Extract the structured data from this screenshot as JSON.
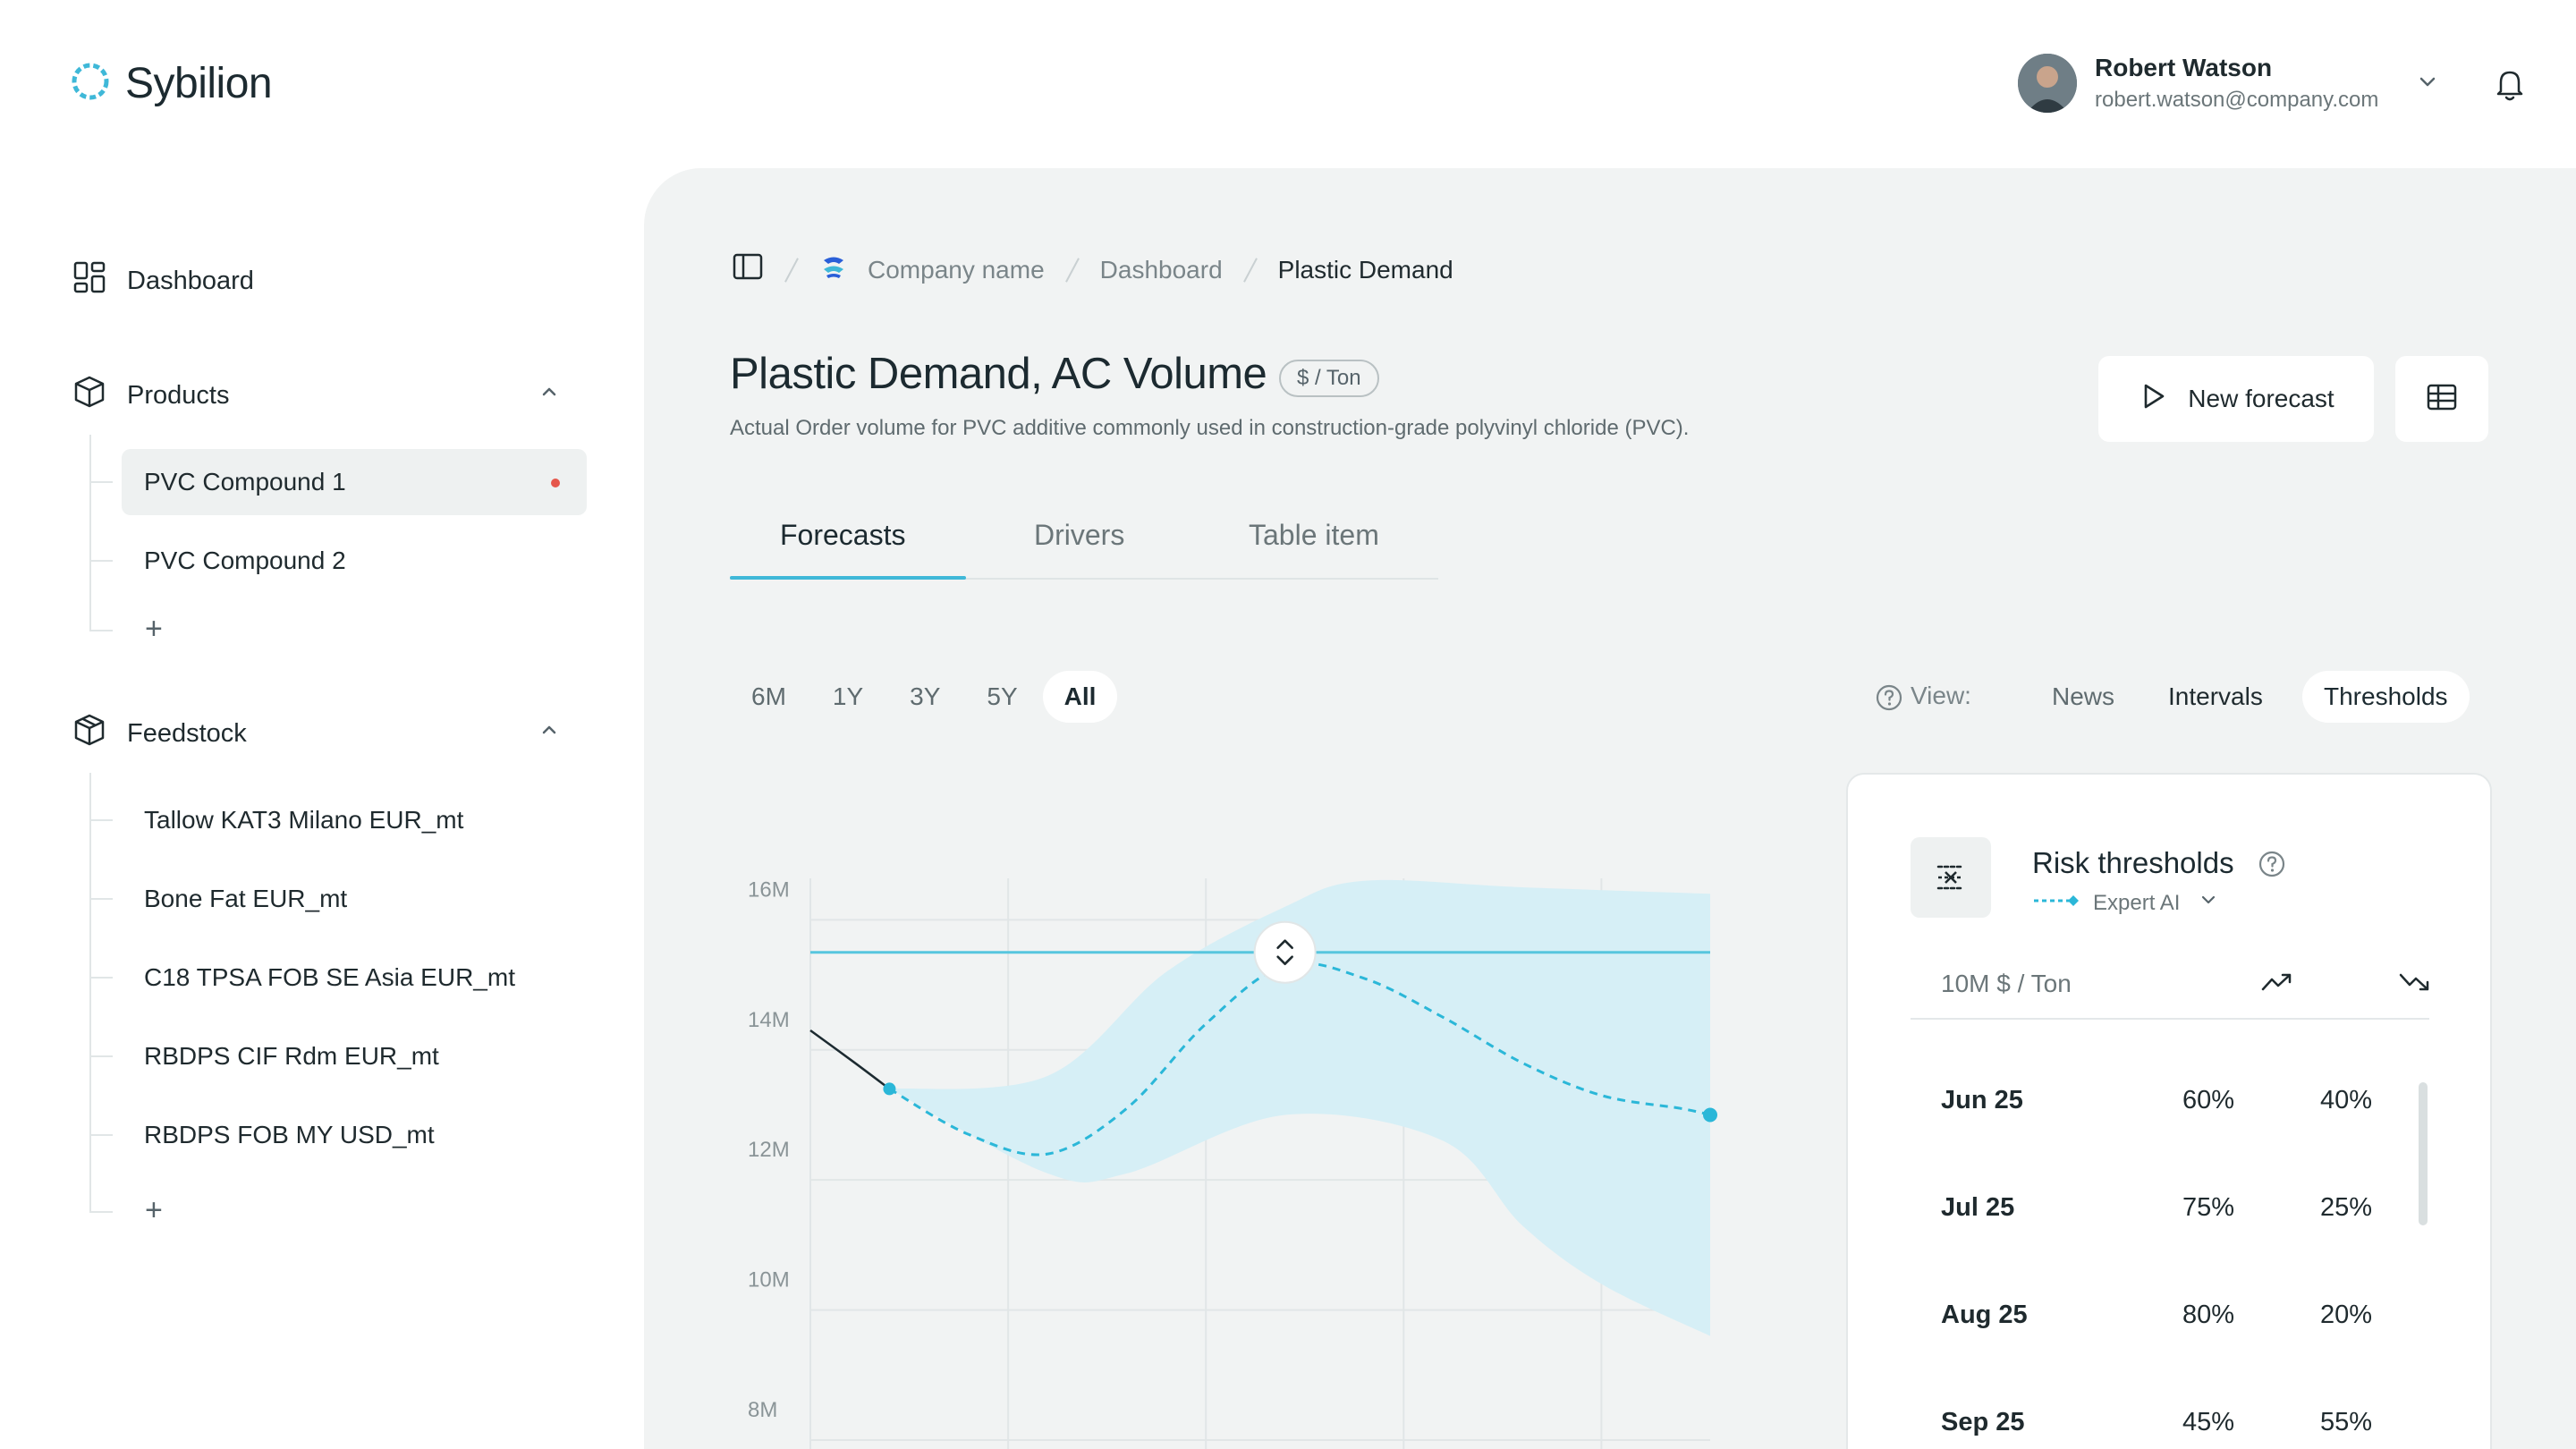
{
  "app": {
    "name": "Sybilion"
  },
  "user": {
    "name": "Robert Watson",
    "email": "robert.watson@company.com"
  },
  "sidebar": {
    "dashboard": "Dashboard",
    "products": {
      "label": "Products",
      "items": [
        {
          "label": "PVC Compound 1",
          "active": true
        },
        {
          "label": "PVC Compound 2",
          "active": false
        }
      ],
      "add": "+"
    },
    "feedstock": {
      "label": "Feedstock",
      "items": [
        {
          "label": "Tallow KAT3 Milano EUR_mt"
        },
        {
          "label": "Bone Fat EUR_mt"
        },
        {
          "label": "C18 TPSA FOB SE Asia EUR_mt"
        },
        {
          "label": "RBDPS CIF Rdm EUR_mt"
        },
        {
          "label": "RBDPS FOB MY USD_mt"
        }
      ],
      "add": "+"
    }
  },
  "breadcrumb": [
    "Company name",
    "Dashboard",
    "Plastic Demand"
  ],
  "page": {
    "title": "Plastic Demand, AC Volume",
    "unit": "$ / Ton",
    "subtitle": "Actual Order volume for PVC additive commonly used in construction-grade polyvinyl chloride (PVC).",
    "new_forecast": "New forecast"
  },
  "tabs": [
    "Forecasts",
    "Drivers",
    "Table item"
  ],
  "ranges": [
    "6M",
    "1Y",
    "3Y",
    "5Y",
    "All"
  ],
  "view": {
    "label": "View:",
    "options": [
      "News",
      "Intervals",
      "Thresholds"
    ],
    "active": "Thresholds"
  },
  "colors": {
    "accent": "#3fb8d8",
    "band": "#d6eff6",
    "alert": "#e5574b"
  },
  "chart_data": {
    "type": "line",
    "y_ticks": [
      "16M",
      "14M",
      "12M",
      "10M",
      "8M"
    ],
    "ylim": [
      8,
      16.5
    ],
    "threshold": 15.5,
    "history": [
      {
        "x": 0,
        "y": 14.3
      },
      {
        "x": 0.45,
        "y": 13.8
      },
      {
        "x": 0.8,
        "y": 13.4
      }
    ],
    "forecast": [
      {
        "x": 0.8,
        "y": 13.4
      },
      {
        "x": 1.6,
        "y": 12.7
      },
      {
        "x": 2.4,
        "y": 12.4
      },
      {
        "x": 3.2,
        "y": 13.1
      },
      {
        "x": 4.0,
        "y": 14.4
      },
      {
        "x": 4.8,
        "y": 15.3
      },
      {
        "x": 5.6,
        "y": 15.1
      },
      {
        "x": 6.4,
        "y": 14.5
      },
      {
        "x": 7.2,
        "y": 13.8
      },
      {
        "x": 8.0,
        "y": 13.3
      },
      {
        "x": 8.8,
        "y": 13.1
      },
      {
        "x": 9.1,
        "y": 13.0
      }
    ],
    "band_upper": [
      {
        "x": 0.8,
        "y": 13.4
      },
      {
        "x": 2.4,
        "y": 13.6
      },
      {
        "x": 3.6,
        "y": 15.2
      },
      {
        "x": 4.8,
        "y": 16.2
      },
      {
        "x": 5.6,
        "y": 16.6
      },
      {
        "x": 7.2,
        "y": 16.5
      },
      {
        "x": 9.1,
        "y": 16.4
      }
    ],
    "band_lower": [
      {
        "x": 0.8,
        "y": 13.4
      },
      {
        "x": 2.4,
        "y": 12.1
      },
      {
        "x": 3.2,
        "y": 12.1
      },
      {
        "x": 4.8,
        "y": 13.0
      },
      {
        "x": 6.4,
        "y": 12.6
      },
      {
        "x": 7.2,
        "y": 11.3
      },
      {
        "x": 8.0,
        "y": 10.4
      },
      {
        "x": 9.1,
        "y": 9.6
      }
    ],
    "x_range": [
      0,
      9.1
    ]
  },
  "risk": {
    "title": "Risk thresholds",
    "model": "Expert AI",
    "unit": "10M $ / Ton",
    "rows": [
      {
        "month": "Jun 25",
        "up": "60%",
        "down": "40%"
      },
      {
        "month": "Jul 25",
        "up": "75%",
        "down": "25%"
      },
      {
        "month": "Aug 25",
        "up": "80%",
        "down": "20%"
      },
      {
        "month": "Sep 25",
        "up": "45%",
        "down": "55%"
      }
    ]
  }
}
